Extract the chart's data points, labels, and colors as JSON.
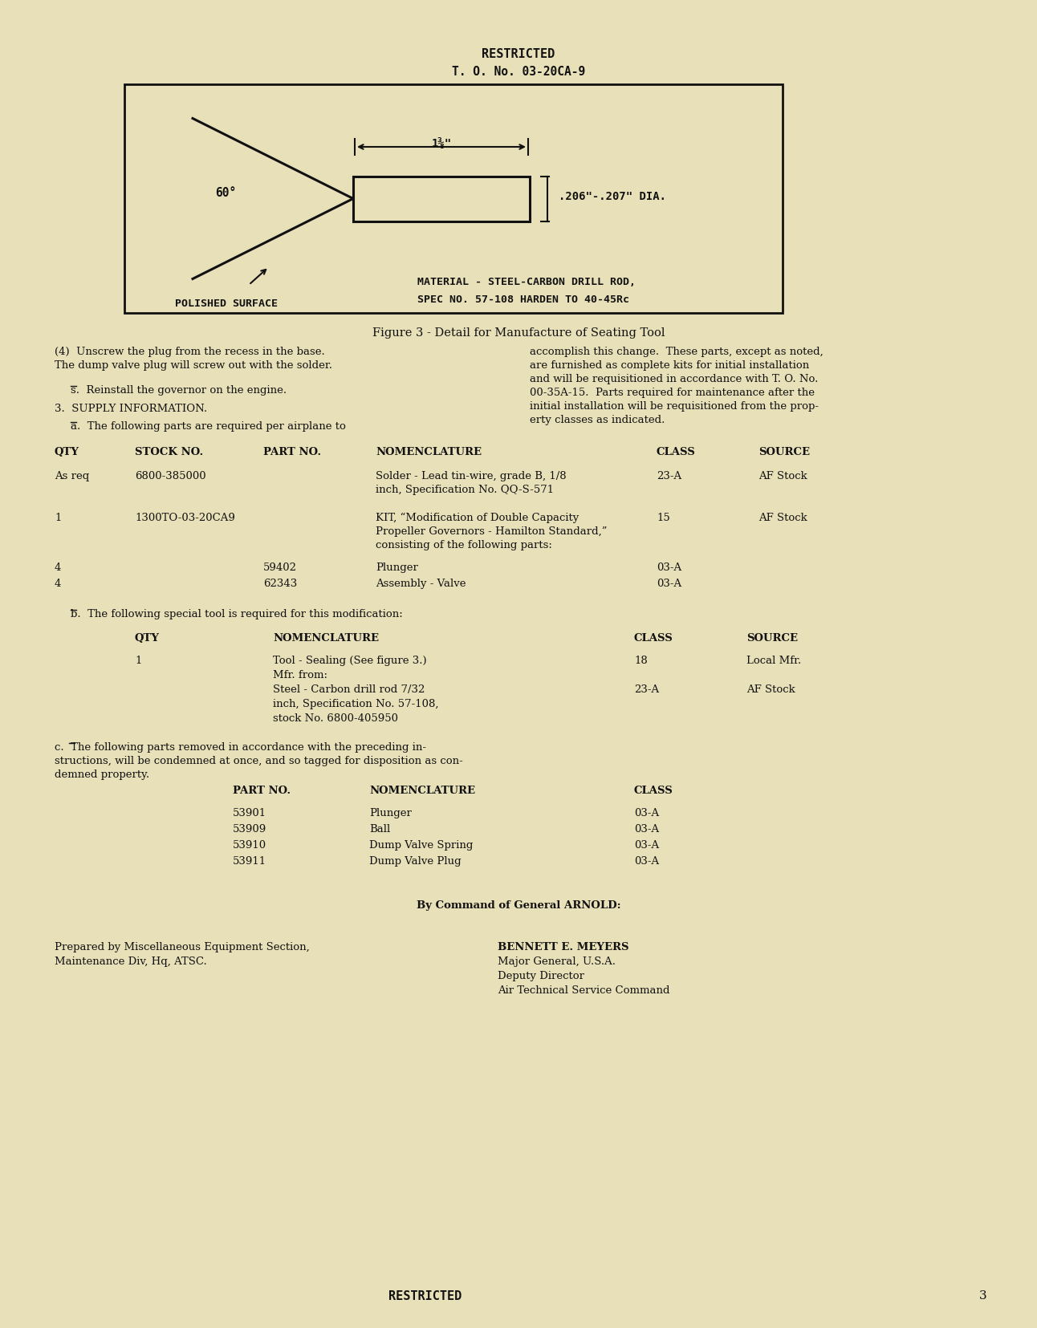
{
  "bg_color": "#e8e0b8",
  "text_color": "#1a1a1a",
  "header_restricted": "RESTRICTED",
  "header_to_no": "T. O. No. 03-20CA-9",
  "figure_caption": "Figure 3 - Detail for Manufacture of Seating Tool",
  "para4_left": "(4)  Unscrew the plug from the recess in the base.\nThe dump valve plug will screw out with the solder.",
  "para_s": "s.  Reinstall the governor on the engine.",
  "para3": "3.  SUPPLY INFORMATION.",
  "para_a": "a.  The following parts are required per airplane to",
  "para_right": "accomplish this change.  These parts, except as noted,\nare furnished as complete kits for initial installation\nand will be requisitioned in accordance with T. O. No.\n00-35A-15.  Parts required for maintenance after the\ninitial installation will be requisitioned from the prop-\nerty classes as indicated.",
  "diagram_label_60": "60°",
  "diagram_label_dia": ".206\"-.207\" DIA.",
  "diagram_label_polished": "POLISHED SURFACE",
  "diagram_label_material1": "MATERIAL - STEEL-CARBON DRILL ROD,",
  "diagram_label_material2": "SPEC NO. 57-108 HARDEN TO 40-45Rc",
  "diagram_dim_label": "1⅜\"",
  "by_command": "By Command of General ARNOLD:",
  "left_footer1": "Prepared by Miscellaneous Equipment Section,",
  "left_footer2": "Maintenance Div, Hq, ATSC.",
  "right_footer_name": "BENNETT E. MEYERS",
  "right_footer_title1": "Major General, U.S.A.",
  "right_footer_title2": "Deputy Director",
  "right_footer_title3": "Air Technical Service Command",
  "footer_restricted": "RESTRICTED",
  "page_num": "3"
}
